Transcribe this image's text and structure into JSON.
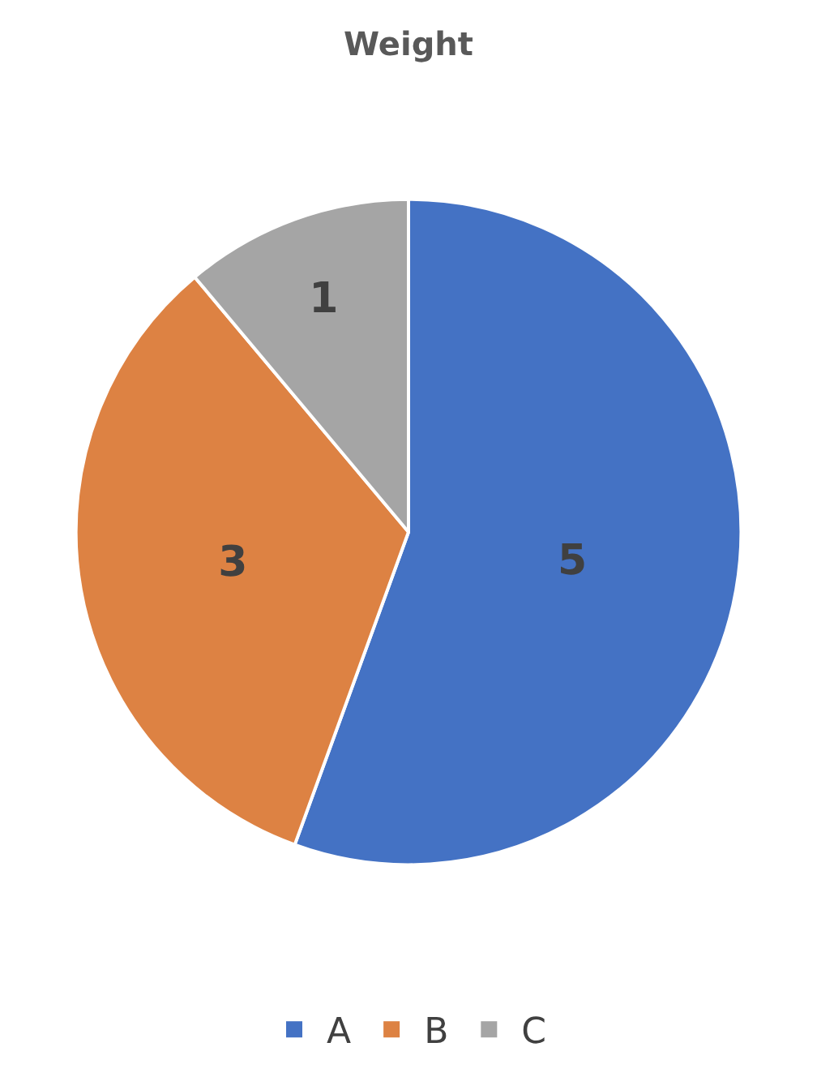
{
  "chart_data": {
    "type": "pie",
    "title": "Weight",
    "categories": [
      "A",
      "B",
      "C"
    ],
    "values": [
      5,
      3,
      1
    ],
    "colors": [
      "#4472c4",
      "#dd8243",
      "#a5a5a5"
    ],
    "data_labels": true,
    "legend": "bottom"
  }
}
